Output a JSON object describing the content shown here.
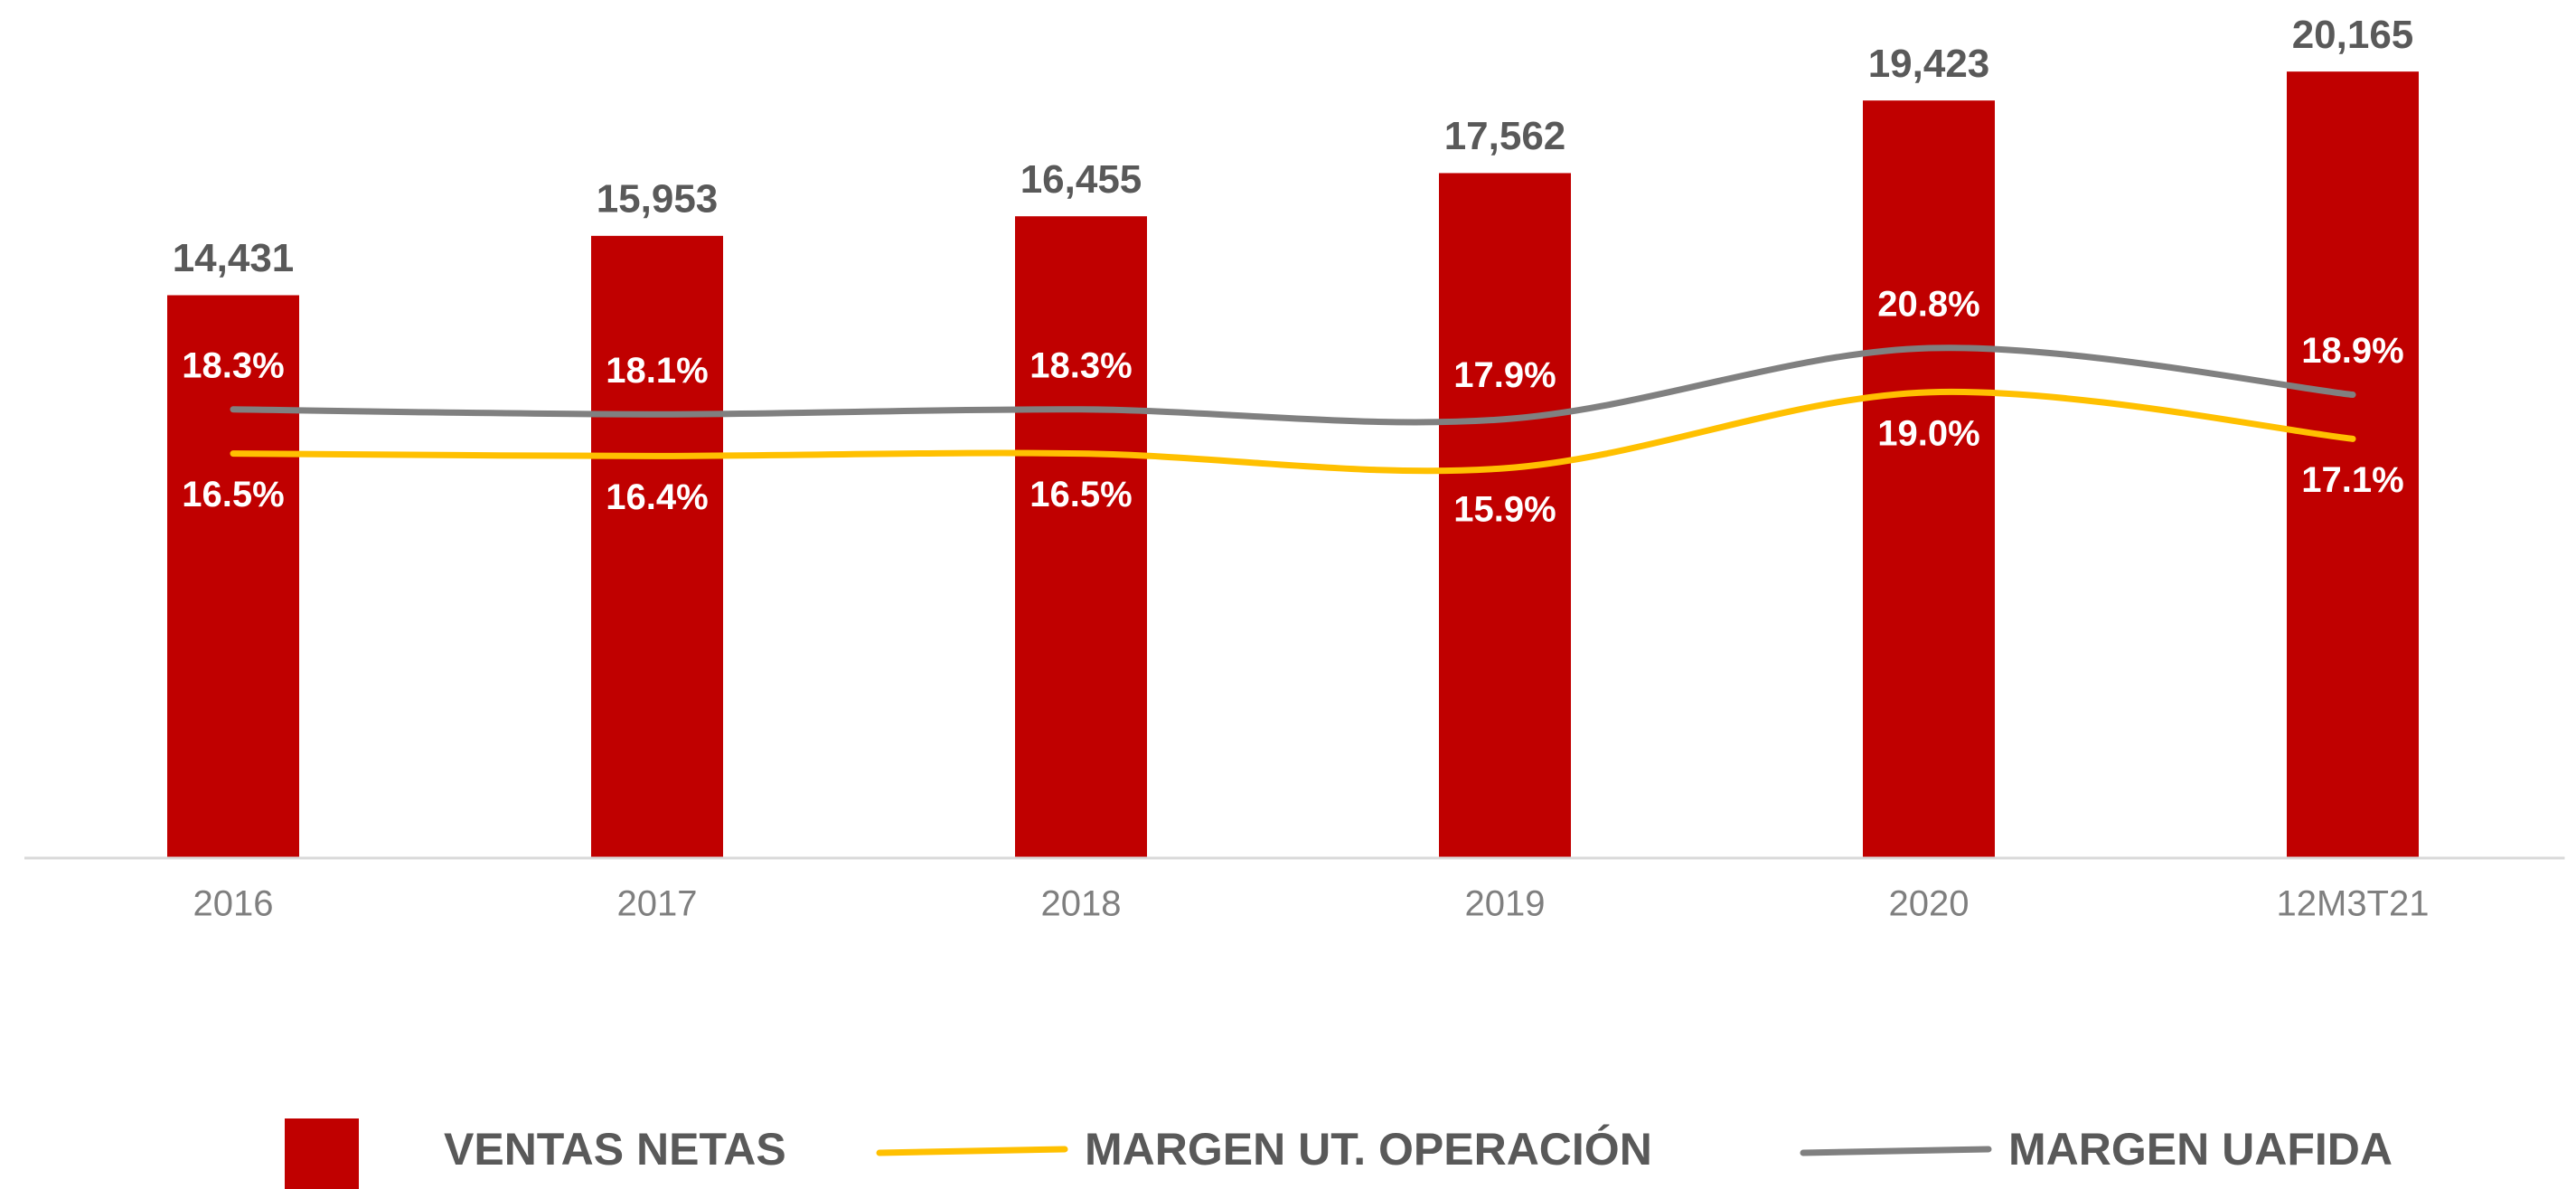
{
  "chart_data": {
    "type": "bar",
    "categories": [
      "2016",
      "2017",
      "2018",
      "2019",
      "2020",
      "12M3T21"
    ],
    "ylim": [
      0,
      22000
    ],
    "y2lim": [
      0,
      35
    ],
    "series": [
      {
        "name": "VENTAS NETAS",
        "type": "bar",
        "color": "#c00000",
        "values": [
          14431,
          15953,
          16455,
          17562,
          19423,
          20165
        ],
        "value_labels": [
          "14,431",
          "15,953",
          "16,455",
          "17,562",
          "19,423",
          "20,165"
        ]
      },
      {
        "name": "MARGEN UT. OPERACIÓN",
        "type": "line",
        "axis": "y2",
        "color": "#ffc000",
        "values": [
          16.5,
          16.4,
          16.5,
          15.9,
          19.0,
          17.1
        ],
        "value_labels": [
          "16.5%",
          "16.4%",
          "16.5%",
          "15.9%",
          "19.0%",
          "17.1%"
        ]
      },
      {
        "name": "MARGEN UAFIDA",
        "type": "line",
        "axis": "y2",
        "color": "#808080",
        "values": [
          18.3,
          18.1,
          18.3,
          17.9,
          20.8,
          18.9
        ],
        "value_labels": [
          "18.3%",
          "18.1%",
          "18.3%",
          "17.9%",
          "20.8%",
          "18.9%"
        ]
      }
    ]
  }
}
